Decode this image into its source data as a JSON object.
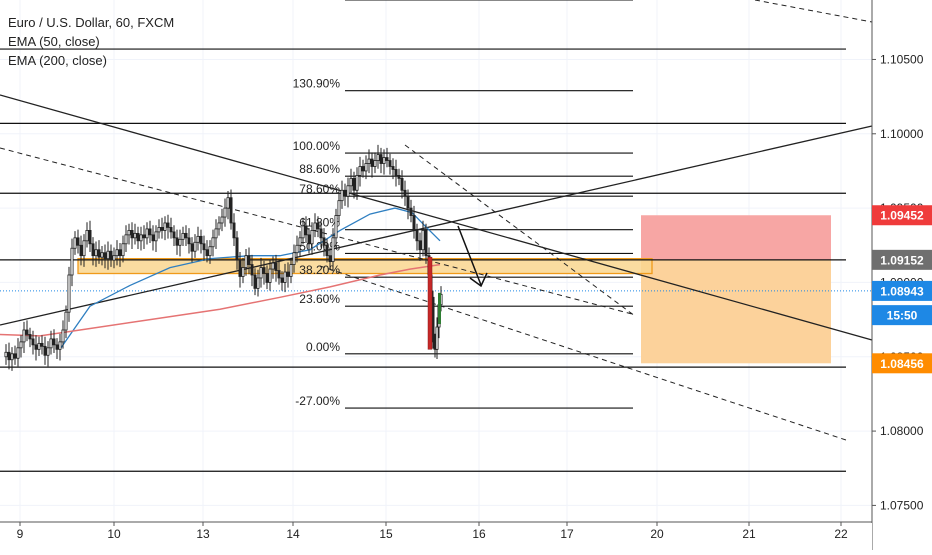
{
  "chart_data": {
    "type": "candlestick",
    "symbol_title": "Euro / U.S. Dollar, 60, FXCM",
    "indicators": [
      "EMA (50, close)",
      "EMA (200, close)"
    ],
    "x_axis": {
      "ticks": [
        "9",
        "10",
        "13",
        "14",
        "15",
        "16",
        "17",
        "20",
        "21",
        "22"
      ]
    },
    "y_axis": {
      "range": [
        1.072,
        1.109
      ],
      "ticks": [
        "1.07500",
        "1.08000",
        "1.08500",
        "1.09000",
        "1.09500",
        "1.10000",
        "1.10500"
      ]
    },
    "price_labels": [
      {
        "text": "1.09452",
        "value": 1.09452,
        "color": "#ef3b3b"
      },
      {
        "text": "1.09152",
        "value": 1.09152,
        "color": "#6f6f6f"
      },
      {
        "text": "1.08943",
        "value": 1.08943,
        "color": "#1e88e5"
      },
      {
        "text": "15:50",
        "value": 1.0878,
        "color": "#1e88e5"
      },
      {
        "text": "1.08456",
        "value": 1.08456,
        "color": "#ff8c00"
      }
    ],
    "fibonacci": {
      "high": 1.0987,
      "low": 1.0852,
      "levels": [
        {
          "label": "130.90%",
          "value": 1.1029
        },
        {
          "label": "100.00%",
          "value": 1.0987
        },
        {
          "label": "88.60%",
          "value": 1.09715
        },
        {
          "label": "78.60%",
          "value": 1.0958
        },
        {
          "label": "61.80%",
          "value": 1.09355
        },
        {
          "label": "50.00%",
          "value": 1.09195
        },
        {
          "label": "38.20%",
          "value": 1.09035
        },
        {
          "label": "23.60%",
          "value": 1.0884
        },
        {
          "label": "0.00%",
          "value": 1.0852
        },
        {
          "label": "-27.00%",
          "value": 1.08155
        }
      ]
    },
    "horizontal_levels": [
      1.1057,
      1.1007,
      1.096,
      1.09152,
      1.0843,
      1.0773
    ],
    "current_price": 1.08943,
    "risk_zone": {
      "top": 1.09452,
      "bottom": 1.09152
    },
    "reward_zone": {
      "top": 1.09152,
      "bottom": 1.08456
    },
    "support_band": {
      "top": 1.0916,
      "bottom": 1.0906
    }
  }
}
